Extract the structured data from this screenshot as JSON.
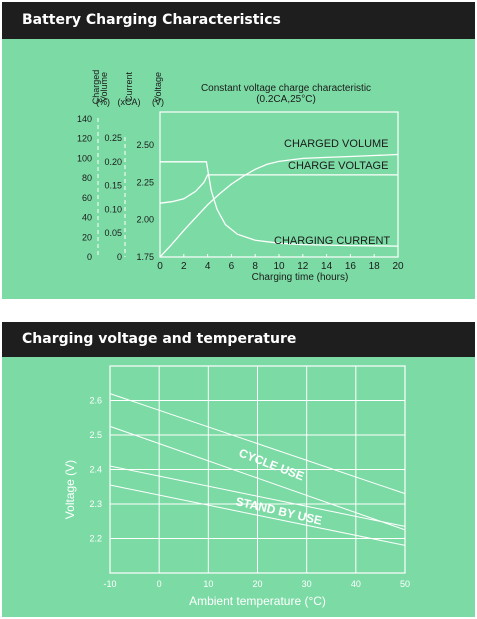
{
  "colors": {
    "panel_bg": "#7cdba5",
    "header_bg": "#1e1e1e",
    "chart1_lines": "#ffffff",
    "grid": "#ffffff"
  },
  "chart1": {
    "header_title": "Battery Charging Characteristics",
    "axis_headers": {
      "volume": {
        "name": "Charged Volume",
        "unit": "(%)"
      },
      "current": {
        "name": "Current",
        "unit": "(xCA)"
      },
      "voltage": {
        "name": "Voltage",
        "unit": "(V)"
      }
    },
    "subtitle_line1": "Constant voltage charge characteristic",
    "subtitle_line2": "(0.2CA,25°C)",
    "xlabel": "Charging time (hours)",
    "annotations": {
      "volume": "CHARGED VOLUME",
      "voltage": "CHARGE VOLTAGE",
      "current": "CHARGING CURRENT"
    }
  },
  "chart2": {
    "header_title": "Charging voltage and temperature",
    "annotations": {
      "cycle": "CYCLE USE",
      "standby": "STAND BY USE"
    }
  },
  "chart_data": [
    {
      "type": "line",
      "title": "Constant voltage charge characteristic (0.2CA,25°C)",
      "xlabel": "Charging time (hours)",
      "xlim": [
        0,
        20
      ],
      "x_ticks": [
        "0",
        "2",
        "4",
        "6",
        "8",
        "10",
        "12",
        "14",
        "16",
        "18",
        "20"
      ],
      "axes": {
        "volume": {
          "label": "Charged Volume (%)",
          "ylim": [
            0,
            140
          ],
          "ticks": [
            "0",
            "20",
            "40",
            "60",
            "80",
            "100",
            "120",
            "140"
          ]
        },
        "current": {
          "label": "Current (xCA)",
          "ylim": [
            0,
            0.25
          ],
          "ticks": [
            "0",
            "0.05",
            "0.10",
            "0.15",
            "0.20",
            "0.25"
          ]
        },
        "voltage": {
          "label": "Voltage (V)",
          "ylim": [
            1.75,
            2.5
          ],
          "ticks": [
            "1.75",
            "2.00",
            "2.25",
            "2.50"
          ]
        }
      },
      "series": [
        {
          "name": "CHARGED VOLUME",
          "axis": "volume",
          "points": [
            [
              0,
              0
            ],
            [
              1,
              13
            ],
            [
              2,
              27
            ],
            [
              3,
              40
            ],
            [
              4,
              53
            ],
            [
              5,
              64
            ],
            [
              6,
              74
            ],
            [
              7,
              82
            ],
            [
              8,
              89
            ],
            [
              9,
              94
            ],
            [
              10,
              97
            ],
            [
              12,
              100
            ],
            [
              14,
              101
            ],
            [
              16,
              102
            ],
            [
              18,
              103
            ],
            [
              20,
              104
            ]
          ]
        },
        {
          "name": "CHARGE VOLTAGE",
          "axis": "voltage",
          "points": [
            [
              0,
              2.11
            ],
            [
              1,
              2.12
            ],
            [
              2,
              2.14
            ],
            [
              3,
              2.19
            ],
            [
              3.7,
              2.25
            ],
            [
              4,
              2.3
            ],
            [
              4.3,
              2.3
            ],
            [
              20,
              2.3
            ]
          ]
        },
        {
          "name": "CHARGING CURRENT",
          "axis": "current",
          "points": [
            [
              0,
              0.2
            ],
            [
              3.9,
              0.2
            ],
            [
              4.3,
              0.14
            ],
            [
              4.8,
              0.1
            ],
            [
              5.5,
              0.068
            ],
            [
              6.5,
              0.048
            ],
            [
              8,
              0.035
            ],
            [
              10,
              0.029
            ],
            [
              12,
              0.026
            ],
            [
              16,
              0.024
            ],
            [
              20,
              0.023
            ]
          ]
        }
      ]
    },
    {
      "type": "line",
      "xlabel": "Ambient temperature (°C)",
      "ylabel": "Voltage (V)",
      "xlim": [
        -10,
        50
      ],
      "ylim": [
        2.1,
        2.7
      ],
      "x_ticks": [
        "-10",
        "0",
        "10",
        "20",
        "30",
        "40",
        "50"
      ],
      "y_ticks": [
        "2.2",
        "2.3",
        "2.4",
        "2.5",
        "2.6"
      ],
      "grid": true,
      "series": [
        {
          "name": "CYCLE USE",
          "points": [
            [
              -10,
              2.62
            ],
            [
              50,
              2.33
            ]
          ]
        },
        {
          "name": "CYCLE USE",
          "points": [
            [
              -10,
              2.525
            ],
            [
              50,
              2.225
            ]
          ]
        },
        {
          "name": "STAND BY USE",
          "points": [
            [
              -10,
              2.41
            ],
            [
              50,
              2.235
            ]
          ]
        },
        {
          "name": "STAND BY USE",
          "points": [
            [
              -10,
              2.355
            ],
            [
              50,
              2.18
            ]
          ]
        }
      ]
    }
  ]
}
